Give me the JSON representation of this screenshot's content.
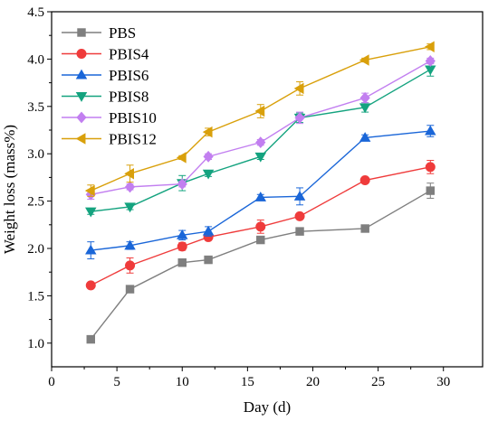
{
  "chart_data": {
    "type": "line",
    "title": "",
    "xlabel": "Day (d)",
    "ylabel": "Weight loss (mass%)",
    "xlim": [
      0,
      33
    ],
    "ylim": [
      0.75,
      4.5
    ],
    "xticks": [
      0,
      5,
      10,
      15,
      20,
      25,
      30
    ],
    "xtick_labels": [
      "0",
      "5",
      "10",
      "15",
      "20",
      "25",
      "30"
    ],
    "yticks": [
      1.0,
      1.5,
      2.0,
      2.5,
      3.0,
      3.5,
      4.0,
      4.5
    ],
    "ytick_labels": [
      "1.0",
      "1.5",
      "2.0",
      "2.5",
      "3.0",
      "3.5",
      "4.0",
      "4.5"
    ],
    "grid": false,
    "legend_position": "top-left",
    "x": [
      3,
      6,
      10,
      12,
      16,
      19,
      24,
      29
    ],
    "series": [
      {
        "name": "PBS",
        "color": "#7f7f7f",
        "marker": "square",
        "values": [
          1.04,
          1.57,
          1.85,
          1.88,
          2.09,
          2.18,
          2.21,
          2.61
        ],
        "errors": [
          0.02,
          0.02,
          0.02,
          0.03,
          0.02,
          0.02,
          0.02,
          0.08
        ]
      },
      {
        "name": "PBIS4",
        "color": "#ef3b3b",
        "marker": "circle",
        "values": [
          1.61,
          1.82,
          2.02,
          2.12,
          2.23,
          2.34,
          2.72,
          2.86
        ],
        "errors": [
          0.03,
          0.08,
          0.04,
          0.03,
          0.07,
          0.03,
          0.02,
          0.07
        ]
      },
      {
        "name": "PBIS6",
        "color": "#1a66d8",
        "marker": "triangle-up",
        "values": [
          1.98,
          2.03,
          2.14,
          2.18,
          2.54,
          2.55,
          3.17,
          3.24
        ],
        "errors": [
          0.09,
          0.04,
          0.05,
          0.05,
          0.03,
          0.09,
          0.03,
          0.06
        ]
      },
      {
        "name": "PBIS8",
        "color": "#14a37f",
        "marker": "triangle-down",
        "values": [
          2.39,
          2.44,
          2.69,
          2.79,
          2.97,
          3.38,
          3.49,
          3.89
        ],
        "errors": [
          0.03,
          0.03,
          0.08,
          0.03,
          0.03,
          0.05,
          0.05,
          0.07
        ]
      },
      {
        "name": "PBIS10",
        "color": "#c27ff0",
        "marker": "diamond",
        "values": [
          2.57,
          2.65,
          2.68,
          2.97,
          3.12,
          3.38,
          3.59,
          3.98
        ],
        "errors": [
          0.05,
          0.03,
          0.03,
          0.03,
          0.03,
          0.06,
          0.05,
          0.03
        ]
      },
      {
        "name": "PBIS12",
        "color": "#d9a00b",
        "marker": "triangle-left",
        "values": [
          2.61,
          2.79,
          2.96,
          3.23,
          3.45,
          3.69,
          3.99,
          4.13
        ],
        "errors": [
          0.06,
          0.09,
          0.02,
          0.04,
          0.07,
          0.07,
          0.02,
          0.03
        ]
      }
    ]
  }
}
